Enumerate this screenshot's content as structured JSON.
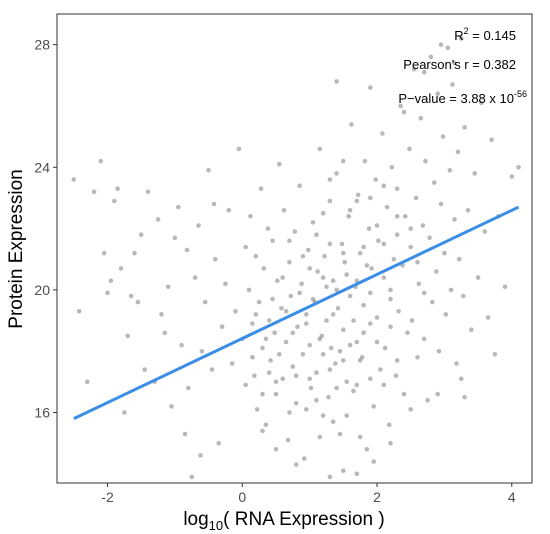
{
  "chart_data": {
    "type": "scatter",
    "title": "",
    "xlabel": {
      "prefix": "log",
      "subscript": "10",
      "suffix": "( RNA Expression )"
    },
    "ylabel": "Protein Expression",
    "xlim": [
      -2.75,
      4.3
    ],
    "ylim": [
      13.7,
      29.0
    ],
    "x_ticks": [
      -2,
      0,
      2,
      4
    ],
    "x_tick_labels": [
      "-2",
      "0",
      "2",
      "4"
    ],
    "y_ticks": [
      16,
      20,
      24,
      28
    ],
    "y_tick_labels": [
      "16",
      "20",
      "24",
      "28"
    ],
    "grid": false,
    "legend": "none",
    "point_color": "#333333",
    "point_alpha": 0.35,
    "line_color": "#3a8ee6",
    "fit_line": {
      "x": [
        -2.5,
        4.1
      ],
      "y": [
        15.8,
        22.7
      ]
    },
    "annotations": {
      "r2": {
        "base": "R",
        "sup": "2",
        "rest": " = 0.145"
      },
      "pearson": "Pearson's r = 0.382",
      "pvalue": {
        "base": "P−value = 3.88 x 10",
        "sup": "-56"
      }
    },
    "points": [
      [
        -2.5,
        23.6
      ],
      [
        -2.42,
        19.3
      ],
      [
        -2.2,
        23.2
      ],
      [
        -2.1,
        24.2
      ],
      [
        -2.05,
        21.2
      ],
      [
        -2.0,
        19.9
      ],
      [
        -1.95,
        20.3
      ],
      [
        -1.9,
        22.9
      ],
      [
        -1.8,
        20.7
      ],
      [
        -1.75,
        16.0
      ],
      [
        -1.7,
        18.5
      ],
      [
        -1.6,
        21.2
      ],
      [
        -1.55,
        19.6
      ],
      [
        -1.5,
        21.8
      ],
      [
        -1.4,
        23.2
      ],
      [
        -1.3,
        17.0
      ],
      [
        -1.2,
        19.2
      ],
      [
        -1.1,
        20.1
      ],
      [
        -1.0,
        21.7
      ],
      [
        -0.95,
        22.7
      ],
      [
        -0.9,
        18.2
      ],
      [
        -0.85,
        15.3
      ],
      [
        -0.8,
        16.8
      ],
      [
        -0.75,
        13.9
      ],
      [
        -0.7,
        20.4
      ],
      [
        -0.65,
        22.1
      ],
      [
        -0.6,
        18.0
      ],
      [
        -0.55,
        19.6
      ],
      [
        -0.5,
        23.9
      ],
      [
        -0.45,
        17.4
      ],
      [
        -0.4,
        21.0
      ],
      [
        -0.35,
        15.0
      ],
      [
        -0.3,
        18.8
      ],
      [
        -0.25,
        20.2
      ],
      [
        -0.2,
        22.6
      ],
      [
        -0.15,
        17.6
      ],
      [
        -0.1,
        19.3
      ],
      [
        -0.05,
        24.6
      ],
      [
        0.0,
        18.4
      ],
      [
        0.05,
        16.9
      ],
      [
        -2.3,
        17.0
      ],
      [
        -1.85,
        23.3
      ],
      [
        -1.65,
        19.8
      ],
      [
        -1.45,
        17.4
      ],
      [
        -1.25,
        22.3
      ],
      [
        -1.15,
        18.6
      ],
      [
        -1.05,
        16.2
      ],
      [
        -0.82,
        21.3
      ],
      [
        -0.62,
        14.6
      ],
      [
        -0.42,
        22.8
      ],
      [
        0.1,
        20.0
      ],
      [
        0.12,
        22.4
      ],
      [
        0.15,
        18.9
      ],
      [
        0.18,
        17.2
      ],
      [
        0.2,
        21.1
      ],
      [
        0.22,
        16.1
      ],
      [
        0.25,
        19.6
      ],
      [
        0.28,
        23.3
      ],
      [
        0.3,
        18.1
      ],
      [
        0.32,
        20.7
      ],
      [
        0.35,
        15.6
      ],
      [
        0.38,
        22.0
      ],
      [
        0.4,
        19.0
      ],
      [
        0.42,
        17.7
      ],
      [
        0.45,
        21.6
      ],
      [
        0.48,
        18.6
      ],
      [
        0.5,
        16.6
      ],
      [
        0.52,
        20.3
      ],
      [
        0.55,
        24.1
      ],
      [
        0.58,
        19.4
      ],
      [
        0.6,
        17.1
      ],
      [
        0.62,
        22.6
      ],
      [
        0.65,
        18.3
      ],
      [
        0.68,
        15.1
      ],
      [
        0.7,
        20.9
      ],
      [
        0.72,
        19.8
      ],
      [
        0.75,
        17.5
      ],
      [
        0.78,
        21.9
      ],
      [
        0.8,
        16.3
      ],
      [
        0.82,
        18.8
      ],
      [
        0.85,
        23.4
      ],
      [
        0.88,
        20.2
      ],
      [
        0.9,
        17.9
      ],
      [
        0.92,
        14.5
      ],
      [
        0.95,
        19.2
      ],
      [
        0.98,
        21.3
      ],
      [
        1.0,
        18.2
      ],
      [
        1.02,
        16.8
      ],
      [
        1.05,
        22.2
      ],
      [
        1.08,
        19.6
      ],
      [
        1.1,
        17.3
      ],
      [
        1.12,
        20.6
      ],
      [
        1.15,
        24.6
      ],
      [
        1.18,
        18.5
      ],
      [
        1.2,
        15.9
      ],
      [
        1.22,
        21.1
      ],
      [
        1.25,
        19.0
      ],
      [
        1.28,
        16.5
      ],
      [
        1.3,
        22.9
      ],
      [
        1.32,
        18.1
      ],
      [
        1.35,
        20.3
      ],
      [
        1.38,
        17.6
      ],
      [
        1.4,
        23.8
      ],
      [
        1.42,
        19.4
      ],
      [
        1.45,
        15.3
      ],
      [
        1.48,
        21.5
      ],
      [
        1.5,
        18.7
      ],
      [
        1.52,
        20.9
      ],
      [
        1.55,
        17.0
      ],
      [
        1.58,
        22.4
      ],
      [
        1.6,
        19.8
      ],
      [
        1.62,
        25.4
      ],
      [
        1.65,
        16.7
      ],
      [
        1.68,
        20.1
      ],
      [
        1.7,
        18.3
      ],
      [
        1.72,
        23.1
      ],
      [
        1.75,
        21.2
      ],
      [
        1.78,
        17.8
      ],
      [
        1.8,
        19.5
      ],
      [
        1.82,
        24.2
      ],
      [
        1.85,
        14.8
      ],
      [
        1.88,
        22.0
      ],
      [
        1.9,
        18.9
      ],
      [
        1.92,
        20.7
      ],
      [
        1.95,
        16.2
      ],
      [
        1.98,
        23.6
      ],
      [
        2.0,
        19.1
      ],
      [
        2.02,
        21.6
      ],
      [
        2.05,
        17.4
      ],
      [
        2.08,
        25.1
      ],
      [
        2.1,
        20.4
      ],
      [
        2.12,
        18.1
      ],
      [
        2.15,
        22.7
      ],
      [
        2.18,
        15.6
      ],
      [
        2.2,
        19.7
      ],
      [
        2.22,
        24.0
      ],
      [
        2.25,
        21.0
      ],
      [
        2.28,
        17.2
      ],
      [
        2.3,
        23.3
      ],
      [
        2.32,
        19.3
      ],
      [
        2.35,
        26.0
      ],
      [
        2.38,
        20.8
      ],
      [
        2.4,
        16.6
      ],
      [
        2.42,
        22.4
      ],
      [
        2.45,
        18.6
      ],
      [
        2.48,
        24.6
      ],
      [
        2.5,
        21.4
      ],
      [
        2.52,
        19.0
      ],
      [
        2.55,
        27.2
      ],
      [
        2.58,
        23.0
      ],
      [
        2.6,
        17.8
      ],
      [
        2.62,
        20.2
      ],
      [
        2.65,
        25.6
      ],
      [
        2.68,
        22.1
      ],
      [
        2.7,
        18.4
      ],
      [
        2.72,
        24.2
      ],
      [
        2.75,
        16.4
      ],
      [
        2.78,
        21.7
      ],
      [
        2.8,
        27.6
      ],
      [
        2.82,
        19.6
      ],
      [
        2.85,
        23.5
      ],
      [
        2.88,
        20.6
      ],
      [
        2.9,
        26.4
      ],
      [
        2.92,
        18.0
      ],
      [
        2.95,
        22.8
      ],
      [
        2.98,
        25.0
      ],
      [
        3.0,
        21.2
      ],
      [
        3.02,
        19.2
      ],
      [
        3.05,
        27.9
      ],
      [
        3.08,
        23.9
      ],
      [
        3.1,
        20.0
      ],
      [
        3.12,
        26.7
      ],
      [
        3.15,
        22.3
      ],
      [
        3.18,
        17.6
      ],
      [
        3.2,
        24.5
      ],
      [
        3.22,
        21.0
      ],
      [
        3.25,
        28.2
      ],
      [
        3.28,
        19.8
      ],
      [
        3.3,
        25.3
      ],
      [
        3.35,
        22.6
      ],
      [
        3.4,
        18.7
      ],
      [
        3.45,
        23.8
      ],
      [
        3.5,
        20.4
      ],
      [
        3.55,
        26.1
      ],
      [
        3.6,
        21.9
      ],
      [
        3.65,
        19.1
      ],
      [
        3.7,
        24.9
      ],
      [
        3.75,
        17.9
      ],
      [
        3.8,
        22.4
      ],
      [
        3.9,
        20.1
      ],
      [
        4.0,
        23.7
      ],
      [
        4.1,
        24.0
      ],
      [
        3.25,
        17.1
      ],
      [
        3.3,
        16.5
      ],
      [
        2.9,
        16.6
      ],
      [
        2.5,
        16.1
      ],
      [
        2.2,
        15.0
      ],
      [
        1.95,
        14.4
      ],
      [
        1.7,
        14.0
      ],
      [
        1.3,
        13.9
      ],
      [
        0.8,
        14.3
      ],
      [
        0.5,
        14.8
      ],
      [
        0.3,
        15.4
      ],
      [
        1.5,
        14.1
      ],
      [
        2.7,
        27.1
      ],
      [
        2.4,
        25.8
      ],
      [
        3.15,
        27.4
      ],
      [
        2.95,
        28.0
      ],
      [
        1.9,
        26.6
      ],
      [
        1.4,
        26.8
      ],
      [
        0.95,
        18.9
      ],
      [
        1.05,
        19.7
      ],
      [
        1.15,
        18.4
      ],
      [
        1.25,
        20.1
      ],
      [
        1.35,
        19.2
      ],
      [
        1.45,
        18.0
      ],
      [
        1.55,
        20.5
      ],
      [
        1.65,
        19.0
      ],
      [
        1.75,
        17.7
      ],
      [
        1.85,
        20.8
      ],
      [
        0.75,
        18.6
      ],
      [
        0.85,
        19.9
      ],
      [
        0.65,
        19.3
      ],
      [
        0.55,
        17.9
      ],
      [
        0.45,
        19.7
      ],
      [
        0.35,
        18.4
      ],
      [
        1.0,
        17.1
      ],
      [
        1.1,
        16.4
      ],
      [
        1.2,
        17.9
      ],
      [
        1.3,
        17.4
      ],
      [
        1.4,
        16.8
      ],
      [
        1.5,
        17.7
      ],
      [
        1.6,
        18.2
      ],
      [
        1.7,
        16.9
      ],
      [
        1.8,
        18.6
      ],
      [
        1.9,
        17.1
      ],
      [
        2.0,
        18.3
      ],
      [
        2.1,
        16.9
      ],
      [
        2.2,
        18.8
      ],
      [
        2.3,
        17.7
      ],
      [
        0.9,
        21.1
      ],
      [
        1.0,
        20.7
      ],
      [
        1.1,
        21.8
      ],
      [
        1.2,
        20.4
      ],
      [
        1.3,
        21.5
      ],
      [
        1.4,
        20.0
      ],
      [
        1.5,
        21.2
      ],
      [
        1.6,
        22.6
      ],
      [
        1.7,
        20.3
      ],
      [
        1.8,
        21.4
      ],
      [
        1.9,
        19.9
      ],
      [
        2.0,
        22.1
      ],
      [
        2.1,
        21.5
      ],
      [
        2.2,
        20.0
      ],
      [
        2.3,
        21.8
      ],
      [
        0.6,
        20.4
      ],
      [
        0.7,
        21.6
      ],
      [
        0.8,
        17.2
      ],
      [
        0.4,
        17.3
      ],
      [
        0.2,
        19.2
      ],
      [
        1.2,
        22.5
      ],
      [
        1.3,
        23.6
      ],
      [
        1.5,
        24.2
      ],
      [
        1.7,
        22.9
      ],
      [
        1.9,
        23.0
      ],
      [
        2.1,
        23.4
      ],
      [
        2.3,
        22.4
      ],
      [
        2.5,
        22.0
      ],
      [
        2.6,
        20.9
      ],
      [
        2.7,
        19.9
      ],
      [
        1.15,
        15.2
      ],
      [
        1.35,
        15.7
      ],
      [
        1.55,
        15.9
      ],
      [
        1.75,
        15.2
      ],
      [
        0.95,
        16.1
      ],
      [
        0.7,
        16.0
      ],
      [
        0.5,
        17.0
      ],
      [
        0.3,
        16.6
      ],
      [
        0.15,
        17.8
      ],
      [
        0.05,
        21.4
      ]
    ]
  }
}
